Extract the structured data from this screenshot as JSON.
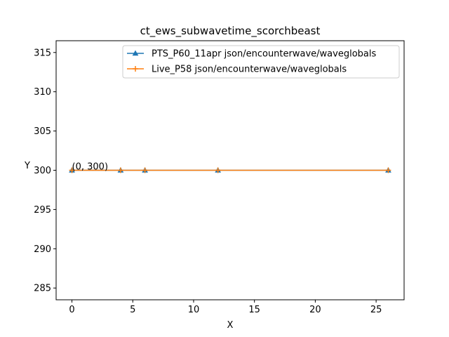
{
  "chart_data": {
    "type": "line",
    "title": "ct_ews_subwavetime_scorchbeast",
    "xlabel": "X",
    "ylabel": "Y",
    "xlim": [
      -1.3,
      27.3
    ],
    "ylim": [
      283.5,
      316.5
    ],
    "xticks": [
      0,
      5,
      10,
      15,
      20,
      25
    ],
    "yticks": [
      285,
      290,
      295,
      300,
      305,
      310,
      315
    ],
    "legend_position": "top-right",
    "series": [
      {
        "name": "PTS_P60_11apr json/encounterwave/waveglobals",
        "color": "#1f77b4",
        "marker": "triangle",
        "x": [
          0,
          4,
          6,
          12,
          26
        ],
        "y": [
          300,
          300,
          300,
          300,
          300
        ]
      },
      {
        "name": "Live_P58 json/encounterwave/waveglobals",
        "color": "#ff7f0e",
        "marker": "plus",
        "x": [
          0,
          4,
          6,
          12,
          26
        ],
        "y": [
          300,
          300,
          300,
          300,
          300
        ]
      }
    ],
    "annotations": [
      {
        "text": "(0, 300)",
        "x": 0,
        "y": 300
      }
    ]
  }
}
